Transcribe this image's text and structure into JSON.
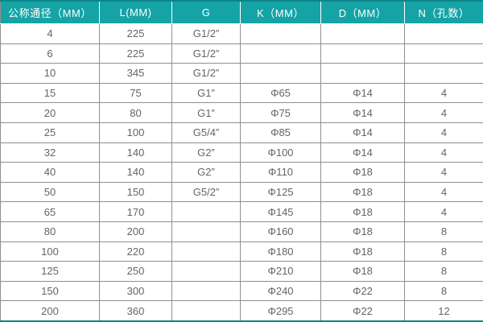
{
  "chart_data": {
    "type": "table",
    "title": "",
    "columns": [
      "公称通径（MM）",
      "L(MM)",
      "G",
      "K（MM）",
      "D（MM）",
      "N（孔数）"
    ],
    "rows": [
      [
        "4",
        "225",
        "G1/2”",
        "",
        "",
        ""
      ],
      [
        "6",
        "225",
        "G1/2”",
        "",
        "",
        ""
      ],
      [
        "10",
        "345",
        "G1/2”",
        "",
        "",
        ""
      ],
      [
        "15",
        "75",
        "G1”",
        "Φ65",
        "Φ14",
        "4"
      ],
      [
        "20",
        "80",
        "G1”",
        "Φ75",
        "Φ14",
        "4"
      ],
      [
        "25",
        "100",
        "G5/4”",
        "Φ85",
        "Φ14",
        "4"
      ],
      [
        "32",
        "140",
        "G2”",
        "Φ100",
        "Φ14",
        "4"
      ],
      [
        "40",
        "140",
        "G2”",
        "Φ110",
        "Φ18",
        "4"
      ],
      [
        "50",
        "150",
        "G5/2”",
        "Φ125",
        "Φ18",
        "4"
      ],
      [
        "65",
        "170",
        "",
        "Φ145",
        "Φ18",
        "4"
      ],
      [
        "80",
        "200",
        "",
        "Φ160",
        "Φ18",
        "8"
      ],
      [
        "100",
        "220",
        "",
        "Φ180",
        "Φ18",
        "8"
      ],
      [
        "125",
        "250",
        "",
        "Φ210",
        "Φ18",
        "8"
      ],
      [
        "150",
        "300",
        "",
        "Φ240",
        "Φ22",
        "8"
      ],
      [
        "200",
        "360",
        "",
        "Φ295",
        "Φ22",
        "12"
      ]
    ]
  },
  "colors": {
    "header_bg": "#15a3a6",
    "header_text": "#ffffff",
    "grid_line": "#8f8f8f",
    "outer_accent": "#0d8588",
    "cell_text": "#646464",
    "row_bg": "#ffffff"
  }
}
